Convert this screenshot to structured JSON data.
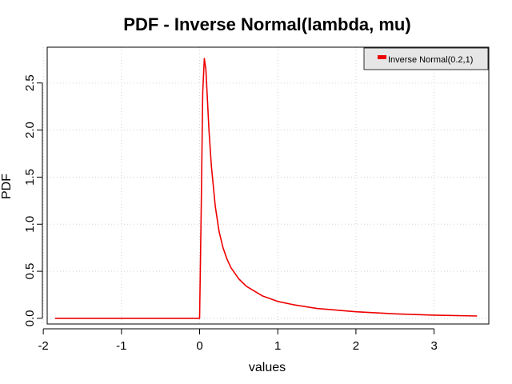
{
  "chart_data": {
    "type": "line",
    "title": "PDF - Inverse Normal(lambda, mu)",
    "xlabel": "values",
    "ylabel": "PDF",
    "xlim": [
      -1.95,
      3.7
    ],
    "ylim": [
      -0.06,
      2.88
    ],
    "x_ticks": [
      -2,
      -1,
      0,
      1,
      2,
      3
    ],
    "x_tick_labels": [
      "-2",
      "-1",
      "0",
      "1",
      "2",
      "3"
    ],
    "y_ticks": [
      0,
      0.5,
      1,
      1.5,
      2,
      2.5
    ],
    "y_tick_labels": [
      "0.0",
      "0.5",
      "1.0",
      "1.5",
      "2.0",
      "2.5"
    ],
    "grid": true,
    "legend_position": "top-right",
    "series": [
      {
        "name": "Inverse Normal(0.2,1)",
        "color": "#ee0000",
        "x": [
          -1.85,
          -1.0,
          -0.5,
          0.0,
          0.02,
          0.04,
          0.06,
          0.08,
          0.1,
          0.12,
          0.15,
          0.2,
          0.25,
          0.3,
          0.35,
          0.4,
          0.5,
          0.6,
          0.7,
          0.8,
          1.0,
          1.2,
          1.5,
          2.0,
          2.5,
          3.0,
          3.55
        ],
        "y": [
          0.0,
          0.0,
          0.0,
          0.0,
          1.15,
          2.4,
          2.76,
          2.65,
          2.32,
          2.0,
          1.62,
          1.19,
          0.92,
          0.75,
          0.63,
          0.54,
          0.42,
          0.34,
          0.29,
          0.24,
          0.18,
          0.145,
          0.105,
          0.07,
          0.048,
          0.034,
          0.025
        ]
      }
    ]
  }
}
